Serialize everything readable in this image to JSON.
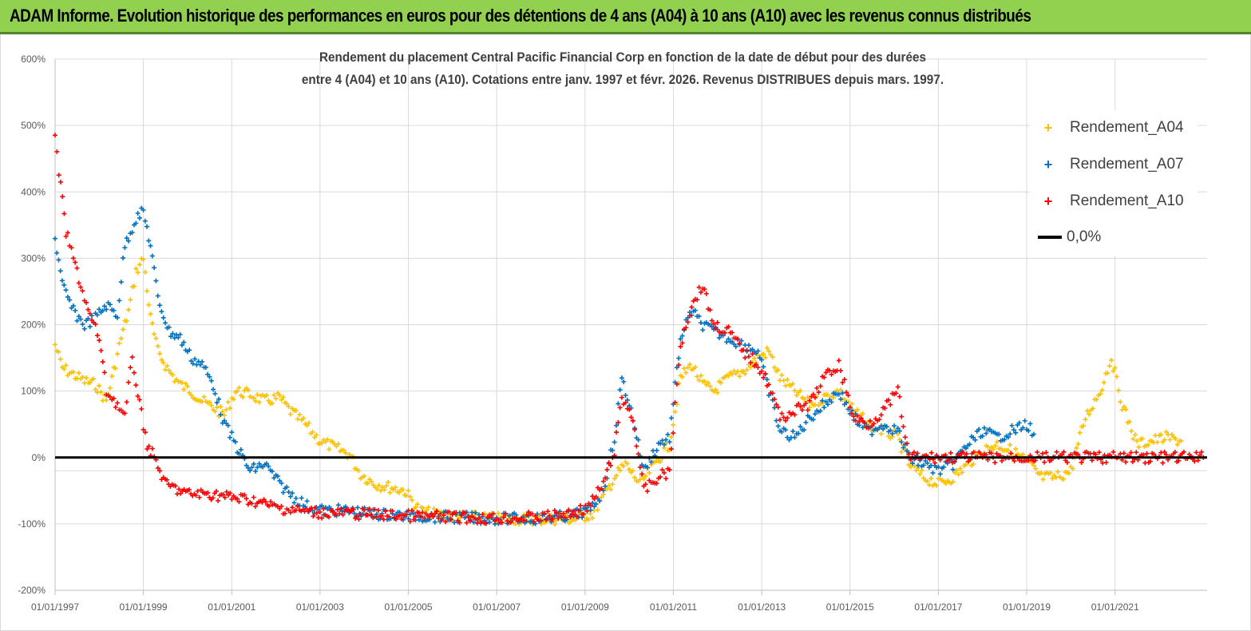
{
  "banner": {
    "title": "ADAM Informe. Evolution historique des performances en euros pour des détentions de 4 ans (A04) à 10 ans (A10) avec les revenus connus distribués"
  },
  "colors": {
    "banner_bg": "#92d050",
    "A04": "#ffc000",
    "A07": "#0070c0",
    "A10": "#ff0000",
    "zero_line": "#000000",
    "grid": "#d9d9d9"
  },
  "chart_data": {
    "type": "scatter",
    "title_line1": "Rendement du placement Central Pacific Financial Corp en fonction de la date de début pour des durées",
    "title_line2": "entre 4 (A04) et 10 ans (A10). Cotations entre janv. 1997 et févr. 2026. Revenus DISTRIBUES depuis mars. 1997.",
    "xlabel": "",
    "ylabel": "",
    "ylim": [
      -200,
      600
    ],
    "xlim": [
      "1997-01-01",
      "2023-02-01"
    ],
    "y_ticks": [
      -200,
      -100,
      0,
      100,
      200,
      300,
      400,
      500,
      600
    ],
    "y_tick_labels": [
      "-200%",
      "-100%",
      "0%",
      "100%",
      "200%",
      "300%",
      "400%",
      "500%",
      "600%"
    ],
    "x_ticks": [
      "1997-01-01",
      "1999-01-01",
      "2001-01-01",
      "2003-01-01",
      "2005-01-01",
      "2007-01-01",
      "2009-01-01",
      "2011-01-01",
      "2013-01-01",
      "2015-01-01",
      "2017-01-01",
      "2019-01-01",
      "2021-01-01"
    ],
    "x_tick_labels": [
      "01/01/1997",
      "01/01/1999",
      "01/01/2001",
      "01/01/2003",
      "01/01/2005",
      "01/01/2007",
      "01/01/2009",
      "01/01/2011",
      "01/01/2013",
      "01/01/2015",
      "01/01/2017",
      "01/01/2019",
      "01/01/2021"
    ],
    "grid": true,
    "legend_position": "top-right",
    "series": [
      {
        "name": "Rendement_A04",
        "color": "#ffc000",
        "points": [
          [
            "1997-01-01",
            170
          ],
          [
            "1997-03-01",
            135
          ],
          [
            "1997-06-01",
            125
          ],
          [
            "1997-09-01",
            115
          ],
          [
            "1997-12-01",
            110
          ],
          [
            "1998-03-01",
            85
          ],
          [
            "1998-05-01",
            130
          ],
          [
            "1998-07-01",
            180
          ],
          [
            "1998-09-01",
            220
          ],
          [
            "1998-11-01",
            280
          ],
          [
            "1999-01-01",
            300
          ],
          [
            "1999-03-01",
            210
          ],
          [
            "1999-05-01",
            160
          ],
          [
            "1999-08-01",
            130
          ],
          [
            "1999-11-01",
            110
          ],
          [
            "2000-02-01",
            100
          ],
          [
            "2000-05-01",
            85
          ],
          [
            "2000-08-01",
            75
          ],
          [
            "2000-11-01",
            65
          ],
          [
            "2001-02-01",
            100
          ],
          [
            "2001-06-01",
            95
          ],
          [
            "2001-10-01",
            85
          ],
          [
            "2002-02-01",
            90
          ],
          [
            "2002-05-01",
            70
          ],
          [
            "2002-09-01",
            50
          ],
          [
            "2003-01-01",
            25
          ],
          [
            "2003-05-01",
            15
          ],
          [
            "2003-09-01",
            5
          ],
          [
            "2003-12-01",
            -25
          ],
          [
            "2004-04-01",
            -40
          ],
          [
            "2004-08-01",
            -45
          ],
          [
            "2004-12-01",
            -50
          ],
          [
            "2005-04-01",
            -80
          ],
          [
            "2005-08-01",
            -85
          ],
          [
            "2005-12-01",
            -88
          ],
          [
            "2006-06-01",
            -90
          ],
          [
            "2007-01-01",
            -92
          ],
          [
            "2007-08-01",
            -93
          ],
          [
            "2008-03-01",
            -93
          ],
          [
            "2008-10-01",
            -93
          ],
          [
            "2009-03-01",
            -85
          ],
          [
            "2009-06-01",
            -60
          ],
          [
            "2009-09-01",
            -30
          ],
          [
            "2009-12-01",
            -10
          ],
          [
            "2010-04-01",
            -40
          ],
          [
            "2010-08-01",
            -10
          ],
          [
            "2010-12-01",
            20
          ],
          [
            "2011-03-01",
            120
          ],
          [
            "2011-06-01",
            140
          ],
          [
            "2011-09-01",
            110
          ],
          [
            "2011-12-01",
            100
          ],
          [
            "2012-04-01",
            120
          ],
          [
            "2012-08-01",
            130
          ],
          [
            "2012-12-01",
            150
          ],
          [
            "2013-03-01",
            160
          ],
          [
            "2013-06-01",
            120
          ],
          [
            "2013-10-01",
            100
          ],
          [
            "2014-02-01",
            80
          ],
          [
            "2014-06-01",
            90
          ],
          [
            "2014-10-01",
            100
          ],
          [
            "2015-02-01",
            70
          ],
          [
            "2015-06-01",
            50
          ],
          [
            "2015-10-01",
            40
          ],
          [
            "2016-02-01",
            30
          ],
          [
            "2016-05-01",
            -10
          ],
          [
            "2016-09-01",
            -30
          ],
          [
            "2017-01-01",
            -40
          ],
          [
            "2017-05-01",
            -30
          ],
          [
            "2017-09-01",
            -10
          ],
          [
            "2018-01-01",
            10
          ],
          [
            "2018-05-01",
            20
          ],
          [
            "2018-09-01",
            10
          ],
          [
            "2019-01-01",
            -5
          ],
          [
            "2019-05-01",
            -30
          ],
          [
            "2019-09-01",
            -30
          ],
          [
            "2020-01-01",
            -20
          ],
          [
            "2020-05-01",
            60
          ],
          [
            "2020-09-01",
            100
          ],
          [
            "2020-12-01",
            150
          ],
          [
            "2021-03-01",
            80
          ],
          [
            "2021-07-01",
            20
          ],
          [
            "2021-11-01",
            25
          ],
          [
            "2022-03-01",
            30
          ],
          [
            "2022-07-01",
            25
          ]
        ]
      },
      {
        "name": "Rendement_A07",
        "color": "#0070c0",
        "points": [
          [
            "1997-01-01",
            330
          ],
          [
            "1997-03-01",
            260
          ],
          [
            "1997-06-01",
            220
          ],
          [
            "1997-09-01",
            200
          ],
          [
            "1997-12-01",
            210
          ],
          [
            "1998-03-01",
            230
          ],
          [
            "1998-06-01",
            215
          ],
          [
            "1998-08-01",
            320
          ],
          [
            "1998-11-01",
            360
          ],
          [
            "1999-01-01",
            370
          ],
          [
            "1999-03-01",
            320
          ],
          [
            "1999-05-01",
            240
          ],
          [
            "1999-08-01",
            190
          ],
          [
            "1999-11-01",
            180
          ],
          [
            "2000-02-01",
            150
          ],
          [
            "2000-05-01",
            140
          ],
          [
            "2000-08-01",
            110
          ],
          [
            "2000-11-01",
            50
          ],
          [
            "2001-02-01",
            20
          ],
          [
            "2001-06-01",
            -20
          ],
          [
            "2001-10-01",
            -10
          ],
          [
            "2002-02-01",
            -40
          ],
          [
            "2002-06-01",
            -60
          ],
          [
            "2002-10-01",
            -75
          ],
          [
            "2003-02-01",
            -80
          ],
          [
            "2003-08-01",
            -80
          ],
          [
            "2004-03-01",
            -85
          ],
          [
            "2005-01-01",
            -88
          ],
          [
            "2006-01-01",
            -90
          ],
          [
            "2007-01-01",
            -92
          ],
          [
            "2008-01-01",
            -92
          ],
          [
            "2008-09-01",
            -88
          ],
          [
            "2009-02-01",
            -80
          ],
          [
            "2009-06-01",
            -50
          ],
          [
            "2009-09-01",
            30
          ],
          [
            "2009-11-01",
            120
          ],
          [
            "2010-02-01",
            60
          ],
          [
            "2010-05-01",
            -20
          ],
          [
            "2010-09-01",
            20
          ],
          [
            "2010-12-01",
            30
          ],
          [
            "2011-03-01",
            180
          ],
          [
            "2011-06-01",
            220
          ],
          [
            "2011-09-01",
            200
          ],
          [
            "2011-12-01",
            190
          ],
          [
            "2012-04-01",
            180
          ],
          [
            "2012-08-01",
            170
          ],
          [
            "2012-12-01",
            160
          ],
          [
            "2013-03-01",
            100
          ],
          [
            "2013-06-01",
            40
          ],
          [
            "2013-10-01",
            30
          ],
          [
            "2014-02-01",
            60
          ],
          [
            "2014-06-01",
            80
          ],
          [
            "2014-10-01",
            100
          ],
          [
            "2015-02-01",
            60
          ],
          [
            "2015-06-01",
            40
          ],
          [
            "2015-10-01",
            50
          ],
          [
            "2016-02-01",
            40
          ],
          [
            "2016-05-01",
            0
          ],
          [
            "2016-09-01",
            -10
          ],
          [
            "2017-01-01",
            -20
          ],
          [
            "2017-05-01",
            -10
          ],
          [
            "2017-09-01",
            20
          ],
          [
            "2018-01-01",
            40
          ],
          [
            "2018-05-01",
            30
          ],
          [
            "2018-09-01",
            40
          ],
          [
            "2019-01-01",
            50
          ],
          [
            "2019-03-01",
            35
          ]
        ]
      },
      {
        "name": "Rendement_A10",
        "color": "#ff0000",
        "points": [
          [
            "1997-01-01",
            480
          ],
          [
            "1997-02-01",
            430
          ],
          [
            "1997-04-01",
            340
          ],
          [
            "1997-07-01",
            280
          ],
          [
            "1997-10-01",
            220
          ],
          [
            "1998-01-01",
            180
          ],
          [
            "1998-03-01",
            100
          ],
          [
            "1998-06-01",
            80
          ],
          [
            "1998-08-01",
            60
          ],
          [
            "1998-10-01",
            150
          ],
          [
            "1998-12-01",
            80
          ],
          [
            "1999-02-01",
            20
          ],
          [
            "1999-04-01",
            0
          ],
          [
            "1999-07-01",
            -40
          ],
          [
            "2000-01-01",
            -55
          ],
          [
            "2000-07-01",
            -55
          ],
          [
            "2001-01-01",
            -60
          ],
          [
            "2001-07-01",
            -65
          ],
          [
            "2002-01-01",
            -75
          ],
          [
            "2002-07-01",
            -80
          ],
          [
            "2003-01-01",
            -83
          ],
          [
            "2004-01-01",
            -85
          ],
          [
            "2005-01-01",
            -88
          ],
          [
            "2006-01-01",
            -90
          ],
          [
            "2007-01-01",
            -92
          ],
          [
            "2008-01-01",
            -90
          ],
          [
            "2008-09-01",
            -85
          ],
          [
            "2009-02-01",
            -75
          ],
          [
            "2009-06-01",
            -40
          ],
          [
            "2009-09-01",
            10
          ],
          [
            "2009-11-01",
            90
          ],
          [
            "2010-02-01",
            60
          ],
          [
            "2010-05-01",
            -50
          ],
          [
            "2010-09-01",
            -30
          ],
          [
            "2010-12-01",
            -20
          ],
          [
            "2011-03-01",
            170
          ],
          [
            "2011-06-01",
            230
          ],
          [
            "2011-09-01",
            260
          ],
          [
            "2011-12-01",
            200
          ],
          [
            "2012-04-01",
            190
          ],
          [
            "2012-08-01",
            160
          ],
          [
            "2012-12-01",
            140
          ],
          [
            "2013-03-01",
            110
          ],
          [
            "2013-06-01",
            60
          ],
          [
            "2013-10-01",
            70
          ],
          [
            "2014-02-01",
            80
          ],
          [
            "2014-06-01",
            120
          ],
          [
            "2014-10-01",
            140
          ],
          [
            "2015-02-01",
            60
          ],
          [
            "2015-06-01",
            50
          ],
          [
            "2015-10-01",
            70
          ],
          [
            "2016-02-01",
            100
          ],
          [
            "2016-05-01",
            0
          ],
          [
            "2017-01-01",
            0
          ],
          [
            "2018-01-01",
            0
          ],
          [
            "2019-01-01",
            0
          ],
          [
            "2020-01-01",
            0
          ],
          [
            "2021-01-01",
            0
          ],
          [
            "2022-01-01",
            0
          ],
          [
            "2023-01-01",
            0
          ]
        ]
      }
    ],
    "legend_items": [
      {
        "label": "Rendement_A04",
        "color": "#ffc000",
        "kind": "marker"
      },
      {
        "label": "Rendement_A07",
        "color": "#0070c0",
        "kind": "marker"
      },
      {
        "label": "Rendement_A10",
        "color": "#ff0000",
        "kind": "marker"
      },
      {
        "label": "0,0%",
        "color": "#000000",
        "kind": "line"
      }
    ],
    "reference_line": {
      "label": "0,0%",
      "y": 0
    }
  }
}
